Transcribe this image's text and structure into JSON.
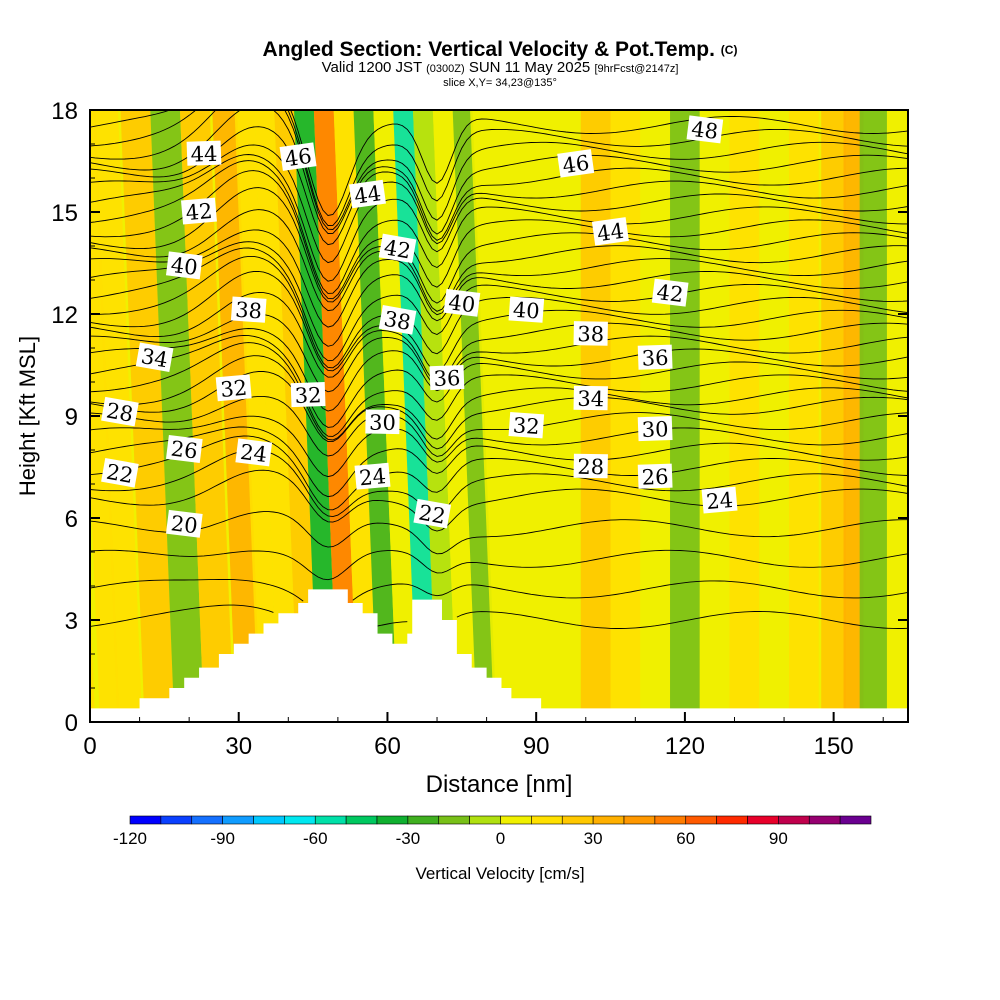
{
  "title": {
    "main": "Angled Section: Vertical Velocity & Pot.Temp.",
    "main_units": "(C)",
    "line2_a": "Valid 1200 JST",
    "line2_b": "(0300Z)",
    "line2_c": "SUN 11 May 2025",
    "line2_d": "[9hrFcst@2147z]",
    "line3": "slice X,Y= 34,23@135°"
  },
  "colorbar": {
    "title": "Vertical Velocity [cm/s]",
    "tick_labels": [
      "-120",
      "-90",
      "-60",
      "-30",
      "0",
      "30",
      "60",
      "90"
    ],
    "tick_values": [
      -120,
      -90,
      -60,
      -30,
      0,
      30,
      60,
      90
    ],
    "levels": [
      -120,
      -110,
      -100,
      -90,
      -80,
      -70,
      -60,
      -50,
      -40,
      -30,
      -20,
      -10,
      0,
      10,
      20,
      30,
      40,
      50,
      60,
      70,
      80,
      90,
      100,
      110
    ],
    "colors": [
      "#0000ff",
      "#0a40ff",
      "#1470ff",
      "#109cff",
      "#00c8ff",
      "#00e8f0",
      "#00e0a8",
      "#00c860",
      "#10b030",
      "#40b020",
      "#78c018",
      "#b0e010",
      "#f0f000",
      "#ffe000",
      "#ffc800",
      "#ffb000",
      "#ff9800",
      "#ff7c00",
      "#ff5a00",
      "#ff2a00",
      "#e8002a",
      "#c0004c",
      "#960070",
      "#6a0090"
    ]
  },
  "chart_data": {
    "type": "heatmap",
    "title": "Angled Section: Vertical Velocity & Pot.Temp.",
    "xlabel": "Distance [nm]",
    "ylabel": "Height [Kft MSL]",
    "xlim": [
      0,
      165
    ],
    "ylim": [
      0,
      18
    ],
    "x_ticks": [
      "0",
      "30",
      "60",
      "90",
      "120",
      "150"
    ],
    "y_ticks": [
      "0",
      "3",
      "6",
      "9",
      "12",
      "15",
      "18"
    ],
    "x_tick_values": [
      0,
      30,
      60,
      90,
      120,
      150
    ],
    "y_tick_values": [
      0,
      3,
      6,
      9,
      12,
      15,
      18
    ],
    "vertical_velocity_columns": [
      {
        "x": 0,
        "w": 10
      },
      {
        "x": 4,
        "w": 12
      },
      {
        "x": 8,
        "w": 14
      },
      {
        "x": 14,
        "w": 22
      },
      {
        "x": 20,
        "w": -12
      },
      {
        "x": 26,
        "w": 25
      },
      {
        "x": 32,
        "w": 30
      },
      {
        "x": 36,
        "w": 18
      },
      {
        "x": 40,
        "w": 12
      },
      {
        "x": 44,
        "w": 20
      },
      {
        "x": 48,
        "w": -35
      },
      {
        "x": 52,
        "w": 55
      },
      {
        "x": 56,
        "w": 12
      },
      {
        "x": 60,
        "w": -25
      },
      {
        "x": 64,
        "w": 8
      },
      {
        "x": 68,
        "w": -55
      },
      {
        "x": 72,
        "w": -10
      },
      {
        "x": 76,
        "w": 5
      },
      {
        "x": 80,
        "w": -15
      },
      {
        "x": 84,
        "w": 3
      },
      {
        "x": 90,
        "w": 3
      },
      {
        "x": 96,
        "w": 2
      },
      {
        "x": 102,
        "w": 22
      },
      {
        "x": 108,
        "w": 15
      },
      {
        "x": 114,
        "w": 5
      },
      {
        "x": 120,
        "w": -15
      },
      {
        "x": 126,
        "w": 5
      },
      {
        "x": 132,
        "w": 12
      },
      {
        "x": 138,
        "w": 2
      },
      {
        "x": 144,
        "w": 15
      },
      {
        "x": 150,
        "w": 25
      },
      {
        "x": 154,
        "w": 30
      },
      {
        "x": 158,
        "w": -20
      },
      {
        "x": 165,
        "w": 2
      }
    ],
    "terrain_top_kft": [
      {
        "x": 10,
        "z": 0.7
      },
      {
        "x": 16,
        "z": 1.0
      },
      {
        "x": 19,
        "z": 1.3
      },
      {
        "x": 22,
        "z": 1.6
      },
      {
        "x": 26,
        "z": 2.0
      },
      {
        "x": 29,
        "z": 2.3
      },
      {
        "x": 32,
        "z": 2.6
      },
      {
        "x": 35,
        "z": 2.9
      },
      {
        "x": 38,
        "z": 3.2
      },
      {
        "x": 42,
        "z": 3.5
      },
      {
        "x": 44,
        "z": 3.9
      },
      {
        "x": 52,
        "z": 3.5
      },
      {
        "x": 55,
        "z": 3.2
      },
      {
        "x": 58,
        "z": 2.6
      },
      {
        "x": 61,
        "z": 2.3
      },
      {
        "x": 64,
        "z": 2.6
      },
      {
        "x": 65,
        "z": 3.6
      },
      {
        "x": 71,
        "z": 3.0
      },
      {
        "x": 74,
        "z": 2.0
      },
      {
        "x": 77,
        "z": 1.6
      },
      {
        "x": 80,
        "z": 1.3
      },
      {
        "x": 83,
        "z": 1.0
      },
      {
        "x": 85,
        "z": 0.7
      },
      {
        "x": 91,
        "z": 0.4
      },
      {
        "x": 165,
        "z": 0.4
      }
    ],
    "potential_temperature_labels": [
      {
        "text": "44",
        "x": 23,
        "y": 16.7
      },
      {
        "text": "46",
        "x": 42,
        "y": 16.6
      },
      {
        "text": "44",
        "x": 56,
        "y": 15.5
      },
      {
        "text": "46",
        "x": 98,
        "y": 16.4
      },
      {
        "text": "48",
        "x": 124,
        "y": 17.4
      },
      {
        "text": "42",
        "x": 22,
        "y": 15.0
      },
      {
        "text": "44",
        "x": 105,
        "y": 14.4
      },
      {
        "text": "42",
        "x": 62,
        "y": 13.9
      },
      {
        "text": "40",
        "x": 19,
        "y": 13.4
      },
      {
        "text": "42",
        "x": 117,
        "y": 12.6
      },
      {
        "text": "38",
        "x": 32,
        "y": 12.1
      },
      {
        "text": "38",
        "x": 62,
        "y": 11.8
      },
      {
        "text": "40",
        "x": 75,
        "y": 12.3
      },
      {
        "text": "40",
        "x": 88,
        "y": 12.1
      },
      {
        "text": "38",
        "x": 101,
        "y": 11.4
      },
      {
        "text": "36",
        "x": 114,
        "y": 10.7
      },
      {
        "text": "34",
        "x": 13,
        "y": 10.7
      },
      {
        "text": "36",
        "x": 72,
        "y": 10.1
      },
      {
        "text": "32",
        "x": 29,
        "y": 9.8
      },
      {
        "text": "32",
        "x": 44,
        "y": 9.6
      },
      {
        "text": "34",
        "x": 101,
        "y": 9.5
      },
      {
        "text": "28",
        "x": 6,
        "y": 9.1
      },
      {
        "text": "30",
        "x": 59,
        "y": 8.8
      },
      {
        "text": "32",
        "x": 88,
        "y": 8.7
      },
      {
        "text": "30",
        "x": 114,
        "y": 8.6
      },
      {
        "text": "26",
        "x": 19,
        "y": 8.0
      },
      {
        "text": "24",
        "x": 33,
        "y": 7.9
      },
      {
        "text": "28",
        "x": 101,
        "y": 7.5
      },
      {
        "text": "22",
        "x": 6,
        "y": 7.3
      },
      {
        "text": "24",
        "x": 57,
        "y": 7.2
      },
      {
        "text": "26",
        "x": 114,
        "y": 7.2
      },
      {
        "text": "24",
        "x": 127,
        "y": 6.5
      },
      {
        "text": "22",
        "x": 69,
        "y": 6.1
      },
      {
        "text": "20",
        "x": 19,
        "y": 5.8
      }
    ]
  }
}
